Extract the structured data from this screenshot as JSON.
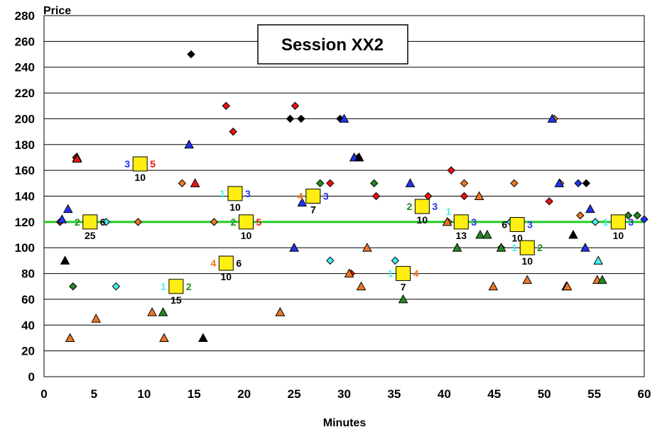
{
  "chart_data": {
    "type": "scatter",
    "title": "Session XX2",
    "xlabel": "Minutes",
    "ylabel": "Price",
    "xlim": [
      0,
      60
    ],
    "ylim": [
      0,
      280
    ],
    "xticks": [
      0,
      5,
      10,
      15,
      20,
      25,
      30,
      35,
      40,
      45,
      50,
      55,
      60
    ],
    "yticks": [
      0,
      20,
      40,
      60,
      80,
      100,
      120,
      140,
      160,
      180,
      200,
      220,
      240,
      260,
      280
    ],
    "grid": "horizontal",
    "reference_line": {
      "y": 120,
      "color": "#22cc22"
    },
    "colors": {
      "red": "#ee1111",
      "blue": "#2233ee",
      "black": "#000000",
      "orange": "#ee7722",
      "green": "#228822",
      "cyan": "#44eeee",
      "yellow": "#ffee11"
    },
    "series": [
      {
        "marker": "diamond",
        "color": "red",
        "points": [
          [
            1.6,
            120
          ],
          [
            3.2,
            170
          ],
          [
            18.2,
            210
          ],
          [
            18.9,
            190
          ],
          [
            25.1,
            210
          ],
          [
            28.6,
            150
          ],
          [
            30.7,
            80
          ],
          [
            33.2,
            140
          ],
          [
            38.4,
            140
          ],
          [
            40.7,
            160
          ],
          [
            42,
            140
          ],
          [
            50.5,
            136
          ]
        ]
      },
      {
        "marker": "diamond",
        "color": "black",
        "points": [
          [
            14.7,
            250
          ],
          [
            24.6,
            200
          ],
          [
            25.7,
            200
          ],
          [
            29.6,
            200
          ],
          [
            31.4,
            170
          ],
          [
            54.2,
            150
          ]
        ]
      },
      {
        "marker": "diamond",
        "color": "orange",
        "points": [
          [
            9.4,
            120
          ],
          [
            13.8,
            150
          ],
          [
            17,
            120
          ],
          [
            40.4,
            120
          ],
          [
            42,
            150
          ],
          [
            47,
            150
          ],
          [
            51,
            200
          ],
          [
            51.6,
            150
          ],
          [
            53.6,
            125
          ]
        ]
      },
      {
        "marker": "diamond",
        "color": "green",
        "points": [
          [
            2.9,
            70
          ],
          [
            27.6,
            150
          ],
          [
            33,
            150
          ],
          [
            45.7,
            100
          ],
          [
            58.4,
            125
          ],
          [
            59.3,
            125
          ]
        ]
      },
      {
        "marker": "diamond",
        "color": "cyan",
        "points": [
          [
            6.2,
            120
          ],
          [
            7.2,
            70
          ],
          [
            28.6,
            90
          ],
          [
            35.1,
            90
          ],
          [
            46.6,
            120
          ],
          [
            55.1,
            120
          ]
        ]
      },
      {
        "marker": "diamond",
        "color": "blue",
        "points": [
          [
            53.4,
            150
          ],
          [
            60,
            122
          ]
        ]
      },
      {
        "marker": "triangle",
        "color": "blue",
        "points": [
          [
            1.8,
            122
          ],
          [
            2.4,
            130
          ],
          [
            3.3,
            170
          ],
          [
            14.5,
            180
          ],
          [
            25,
            100
          ],
          [
            23.6,
            50
          ],
          [
            25.8,
            135
          ],
          [
            30,
            200
          ],
          [
            31,
            170
          ],
          [
            36.6,
            150
          ],
          [
            50.8,
            200
          ],
          [
            51.5,
            150
          ],
          [
            52.2,
            70
          ],
          [
            54.1,
            100
          ],
          [
            54.6,
            130
          ]
        ]
      },
      {
        "marker": "triangle",
        "color": "red",
        "points": [
          [
            3.3,
            169
          ],
          [
            15.1,
            150
          ]
        ]
      },
      {
        "marker": "triangle",
        "color": "black",
        "points": [
          [
            2.1,
            90
          ],
          [
            15.9,
            30
          ],
          [
            31.5,
            170
          ],
          [
            52.9,
            110
          ],
          [
            18,
            88
          ]
        ]
      },
      {
        "marker": "triangle",
        "color": "orange",
        "points": [
          [
            2.6,
            30
          ],
          [
            5.2,
            45
          ],
          [
            10.8,
            50
          ],
          [
            12,
            30
          ],
          [
            23.6,
            50
          ],
          [
            31.7,
            70
          ],
          [
            32.3,
            100
          ],
          [
            30.5,
            80
          ],
          [
            43.5,
            140
          ],
          [
            44.9,
            70
          ],
          [
            48.3,
            75
          ],
          [
            52.3,
            70
          ],
          [
            55.3,
            75
          ],
          [
            40.3,
            120
          ]
        ]
      },
      {
        "marker": "triangle",
        "color": "green",
        "points": [
          [
            11.9,
            50
          ],
          [
            35.9,
            60
          ],
          [
            41.3,
            100
          ],
          [
            43.6,
            110
          ],
          [
            44.3,
            110
          ],
          [
            45.7,
            100
          ],
          [
            55.8,
            75
          ]
        ]
      },
      {
        "marker": "triangle",
        "color": "cyan",
        "points": [
          [
            55.4,
            90
          ]
        ]
      }
    ],
    "session_markers": [
      {
        "x": 4.6,
        "y": 120,
        "below": "25",
        "left": "2",
        "left_color": "green",
        "right": "6",
        "right_color": "black"
      },
      {
        "x": 9.6,
        "y": 165,
        "below": "10",
        "left": "3",
        "left_color": "blue",
        "right": "5",
        "right_color": "red"
      },
      {
        "x": 13.2,
        "y": 70,
        "below": "15",
        "left": "1",
        "left_color": "cyan",
        "right": "2",
        "right_color": "green"
      },
      {
        "x": 18.2,
        "y": 88,
        "below": "10",
        "left": "4",
        "left_color": "orange",
        "right": "6",
        "right_color": "black"
      },
      {
        "x": 19.1,
        "y": 142,
        "below": "10",
        "left": "1",
        "left_color": "cyan",
        "right": "3",
        "right_color": "blue"
      },
      {
        "x": 20.2,
        "y": 120,
        "below": "10",
        "left": "2",
        "left_color": "green",
        "right": "5",
        "right_color": "red"
      },
      {
        "x": 26.9,
        "y": 140,
        "below": "7",
        "left": "4",
        "left_color": "orange",
        "right": "3",
        "right_color": "blue"
      },
      {
        "x": 35.9,
        "y": 80,
        "below": "7",
        "left": "1",
        "left_color": "cyan",
        "right": "4",
        "right_color": "orange"
      },
      {
        "x": 37.8,
        "y": 132,
        "below": "10",
        "left": "2",
        "left_color": "green",
        "right": "3",
        "right_color": "blue"
      },
      {
        "x": 41.7,
        "y": 120,
        "below": "13",
        "top_left": "1",
        "top_left_color": "cyan",
        "right": "3",
        "right_color": "blue"
      },
      {
        "x": 47.3,
        "y": 118,
        "below": "10",
        "left": "6",
        "left_color": "black",
        "right": "3",
        "right_color": "blue"
      },
      {
        "x": 48.3,
        "y": 100,
        "below": "10",
        "left": "1",
        "left_color": "cyan",
        "right": "2",
        "right_color": "green"
      },
      {
        "x": 57.4,
        "y": 120,
        "below": "10",
        "left": "1",
        "left_color": "cyan",
        "right": "3",
        "right_color": "blue"
      }
    ]
  }
}
